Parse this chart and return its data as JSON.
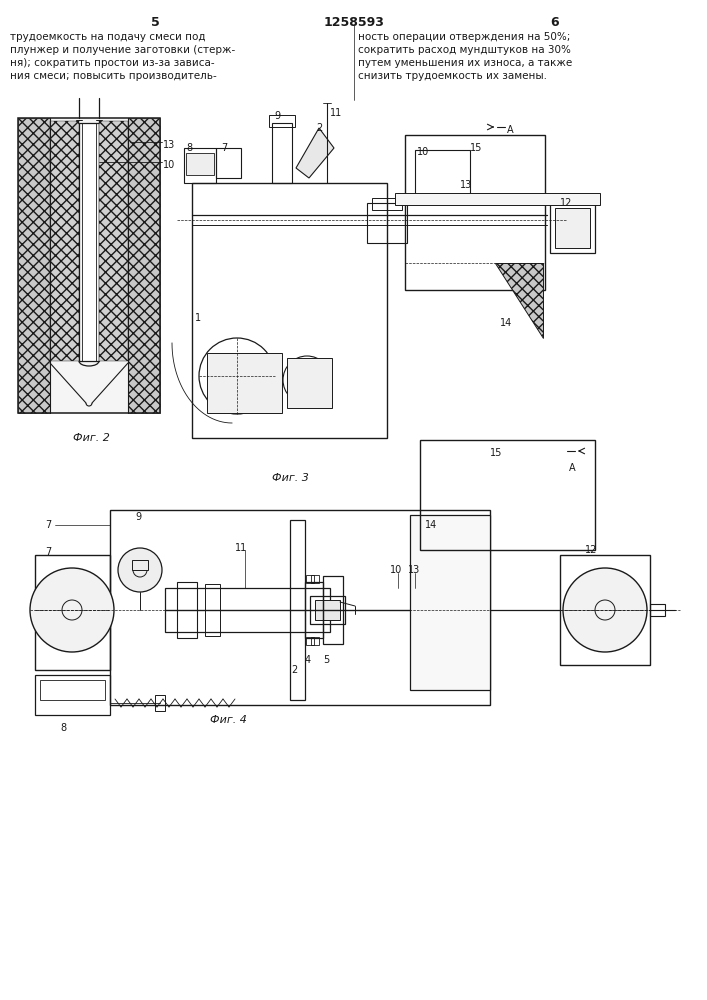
{
  "page_width": 7.07,
  "page_height": 10.0,
  "bg_color": "#ffffff",
  "header": {
    "page_left": "5",
    "patent_num": "1258593",
    "page_right": "6"
  },
  "text_left": "трудоемкость на подачу смеси под\nплунжер и получение заготовки (стерж-\nня); сократить простои из-за зависа-\nния смеси; повысить производитель-",
  "text_right": "ность операции отверждения на 50%;\nсократить расход мундштуков на 30%\nпутем уменьшения их износа, а также\nснизить трудоемкость их замены.",
  "fig2_label": "Фиг. 2",
  "fig3_label": "Фиг. 3",
  "fig4_label": "Фиг. 4",
  "line_color": "#1a1a1a"
}
